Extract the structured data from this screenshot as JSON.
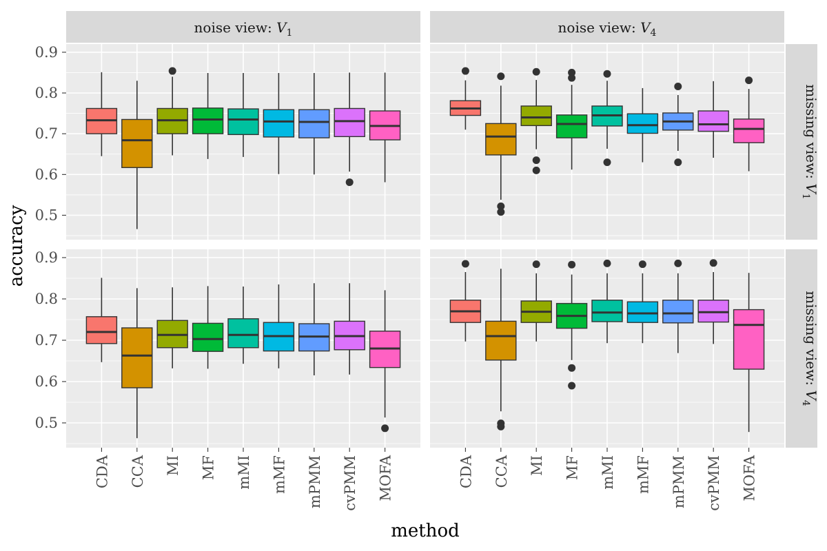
{
  "chart_data": {
    "type": "boxplot",
    "xlabel": "method",
    "ylabel": "accuracy",
    "ylim": [
      0.44,
      0.92
    ],
    "y_ticks": [
      0.5,
      0.6,
      0.7,
      0.8,
      0.9
    ],
    "y_tick_labels": [
      "0.5",
      "0.6",
      "0.7",
      "0.8",
      "0.9"
    ],
    "categories": [
      "CDA",
      "CCA",
      "MI",
      "MF",
      "mMI",
      "mMF",
      "mPMM",
      "cvPMM",
      "MOFA"
    ],
    "colors": [
      "#F8766D",
      "#D39200",
      "#93AA00",
      "#00BA38",
      "#00C19F",
      "#00B9E3",
      "#619CFF",
      "#DB72FB",
      "#FF61C3"
    ],
    "col_strips": [
      {
        "prefix": "noise view: ",
        "var": "V",
        "sub": "1"
      },
      {
        "prefix": "noise view: ",
        "var": "V",
        "sub": "4"
      }
    ],
    "row_strips": [
      {
        "prefix": "missing view: ",
        "var": "V",
        "sub": "1"
      },
      {
        "prefix": "missing view: ",
        "var": "V",
        "sub": "4"
      }
    ],
    "panels": [
      {
        "row": 0,
        "col": 0,
        "boxes": [
          {
            "min": 0.645,
            "q1": 0.7,
            "median": 0.733,
            "q3": 0.762,
            "max": 0.851,
            "outliers": []
          },
          {
            "min": 0.466,
            "q1": 0.617,
            "median": 0.684,
            "q3": 0.735,
            "max": 0.83,
            "outliers": []
          },
          {
            "min": 0.647,
            "q1": 0.7,
            "median": 0.733,
            "q3": 0.762,
            "max": 0.84,
            "outliers": [
              0.854
            ]
          },
          {
            "min": 0.638,
            "q1": 0.7,
            "median": 0.735,
            "q3": 0.763,
            "max": 0.849,
            "outliers": []
          },
          {
            "min": 0.643,
            "q1": 0.698,
            "median": 0.735,
            "q3": 0.761,
            "max": 0.849,
            "outliers": []
          },
          {
            "min": 0.601,
            "q1": 0.692,
            "median": 0.73,
            "q3": 0.759,
            "max": 0.849,
            "outliers": []
          },
          {
            "min": 0.6,
            "q1": 0.69,
            "median": 0.729,
            "q3": 0.759,
            "max": 0.849,
            "outliers": []
          },
          {
            "min": 0.607,
            "q1": 0.693,
            "median": 0.731,
            "q3": 0.762,
            "max": 0.85,
            "outliers": [
              0.581
            ]
          },
          {
            "min": 0.581,
            "q1": 0.685,
            "median": 0.719,
            "q3": 0.756,
            "max": 0.85,
            "outliers": []
          }
        ]
      },
      {
        "row": 0,
        "col": 1,
        "boxes": [
          {
            "min": 0.71,
            "q1": 0.745,
            "median": 0.762,
            "q3": 0.781,
            "max": 0.831,
            "outliers": [
              0.854
            ]
          },
          {
            "min": 0.538,
            "q1": 0.648,
            "median": 0.693,
            "q3": 0.725,
            "max": 0.818,
            "outliers": [
              0.841,
              0.522,
              0.508
            ]
          },
          {
            "min": 0.662,
            "q1": 0.72,
            "median": 0.74,
            "q3": 0.768,
            "max": 0.832,
            "outliers": [
              0.852,
              0.635,
              0.61
            ]
          },
          {
            "min": 0.612,
            "q1": 0.69,
            "median": 0.724,
            "q3": 0.746,
            "max": 0.82,
            "outliers": [
              0.85,
              0.837
            ]
          },
          {
            "min": 0.663,
            "q1": 0.719,
            "median": 0.745,
            "q3": 0.768,
            "max": 0.83,
            "outliers": [
              0.847,
              0.63
            ]
          },
          {
            "min": 0.63,
            "q1": 0.701,
            "median": 0.721,
            "q3": 0.749,
            "max": 0.812,
            "outliers": []
          },
          {
            "min": 0.658,
            "q1": 0.709,
            "median": 0.73,
            "q3": 0.751,
            "max": 0.795,
            "outliers": [
              0.816,
              0.63
            ]
          },
          {
            "min": 0.641,
            "q1": 0.706,
            "median": 0.723,
            "q3": 0.756,
            "max": 0.829,
            "outliers": []
          },
          {
            "min": 0.608,
            "q1": 0.678,
            "median": 0.712,
            "q3": 0.736,
            "max": 0.81,
            "outliers": [
              0.831
            ]
          }
        ]
      },
      {
        "row": 1,
        "col": 0,
        "boxes": [
          {
            "min": 0.647,
            "q1": 0.692,
            "median": 0.72,
            "q3": 0.757,
            "max": 0.851,
            "outliers": []
          },
          {
            "min": 0.463,
            "q1": 0.585,
            "median": 0.663,
            "q3": 0.73,
            "max": 0.826,
            "outliers": []
          },
          {
            "min": 0.632,
            "q1": 0.682,
            "median": 0.713,
            "q3": 0.748,
            "max": 0.828,
            "outliers": []
          },
          {
            "min": 0.631,
            "q1": 0.673,
            "median": 0.703,
            "q3": 0.741,
            "max": 0.831,
            "outliers": []
          },
          {
            "min": 0.643,
            "q1": 0.682,
            "median": 0.713,
            "q3": 0.752,
            "max": 0.83,
            "outliers": []
          },
          {
            "min": 0.632,
            "q1": 0.674,
            "median": 0.71,
            "q3": 0.743,
            "max": 0.835,
            "outliers": []
          },
          {
            "min": 0.615,
            "q1": 0.674,
            "median": 0.709,
            "q3": 0.74,
            "max": 0.838,
            "outliers": []
          },
          {
            "min": 0.617,
            "q1": 0.677,
            "median": 0.71,
            "q3": 0.746,
            "max": 0.838,
            "outliers": []
          },
          {
            "min": 0.513,
            "q1": 0.634,
            "median": 0.68,
            "q3": 0.722,
            "max": 0.821,
            "outliers": [
              0.487
            ]
          }
        ]
      },
      {
        "row": 1,
        "col": 1,
        "boxes": [
          {
            "min": 0.697,
            "q1": 0.743,
            "median": 0.77,
            "q3": 0.797,
            "max": 0.865,
            "outliers": [
              0.885
            ]
          },
          {
            "min": 0.528,
            "q1": 0.652,
            "median": 0.71,
            "q3": 0.746,
            "max": 0.873,
            "outliers": [
              0.499,
              0.491
            ]
          },
          {
            "min": 0.697,
            "q1": 0.743,
            "median": 0.769,
            "q3": 0.795,
            "max": 0.862,
            "outliers": [
              0.884
            ]
          },
          {
            "min": 0.652,
            "q1": 0.729,
            "median": 0.759,
            "q3": 0.789,
            "max": 0.859,
            "outliers": [
              0.883,
              0.633,
              0.59
            ]
          },
          {
            "min": 0.693,
            "q1": 0.745,
            "median": 0.767,
            "q3": 0.797,
            "max": 0.862,
            "outliers": [
              0.886
            ]
          },
          {
            "min": 0.693,
            "q1": 0.743,
            "median": 0.765,
            "q3": 0.793,
            "max": 0.862,
            "outliers": [
              0.884
            ]
          },
          {
            "min": 0.669,
            "q1": 0.742,
            "median": 0.765,
            "q3": 0.797,
            "max": 0.862,
            "outliers": [
              0.886
            ]
          },
          {
            "min": 0.691,
            "q1": 0.744,
            "median": 0.768,
            "q3": 0.797,
            "max": 0.865,
            "outliers": [
              0.887
            ]
          },
          {
            "min": 0.478,
            "q1": 0.63,
            "median": 0.737,
            "q3": 0.774,
            "max": 0.863,
            "outliers": []
          }
        ]
      }
    ]
  }
}
